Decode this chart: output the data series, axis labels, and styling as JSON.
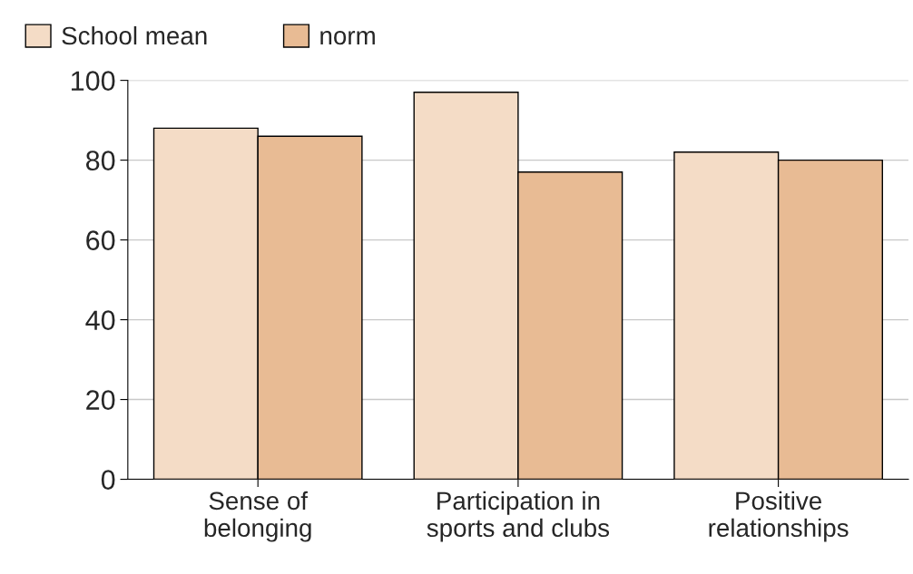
{
  "chart_data": {
    "type": "bar",
    "categories": [
      "Sense of\nbelonging",
      "Participation in\nsports and clubs",
      "Positive\nrelationships"
    ],
    "series": [
      {
        "name": "School mean",
        "color": "#f4dcc6",
        "values": [
          88,
          97,
          82
        ]
      },
      {
        "name": "norm",
        "color": "#e8bb94",
        "values": [
          86,
          77,
          80
        ]
      }
    ],
    "ylim": [
      0,
      100
    ],
    "yticks": [
      0,
      20,
      40,
      60,
      80,
      100
    ],
    "grid": "y",
    "legend": "top left"
  }
}
